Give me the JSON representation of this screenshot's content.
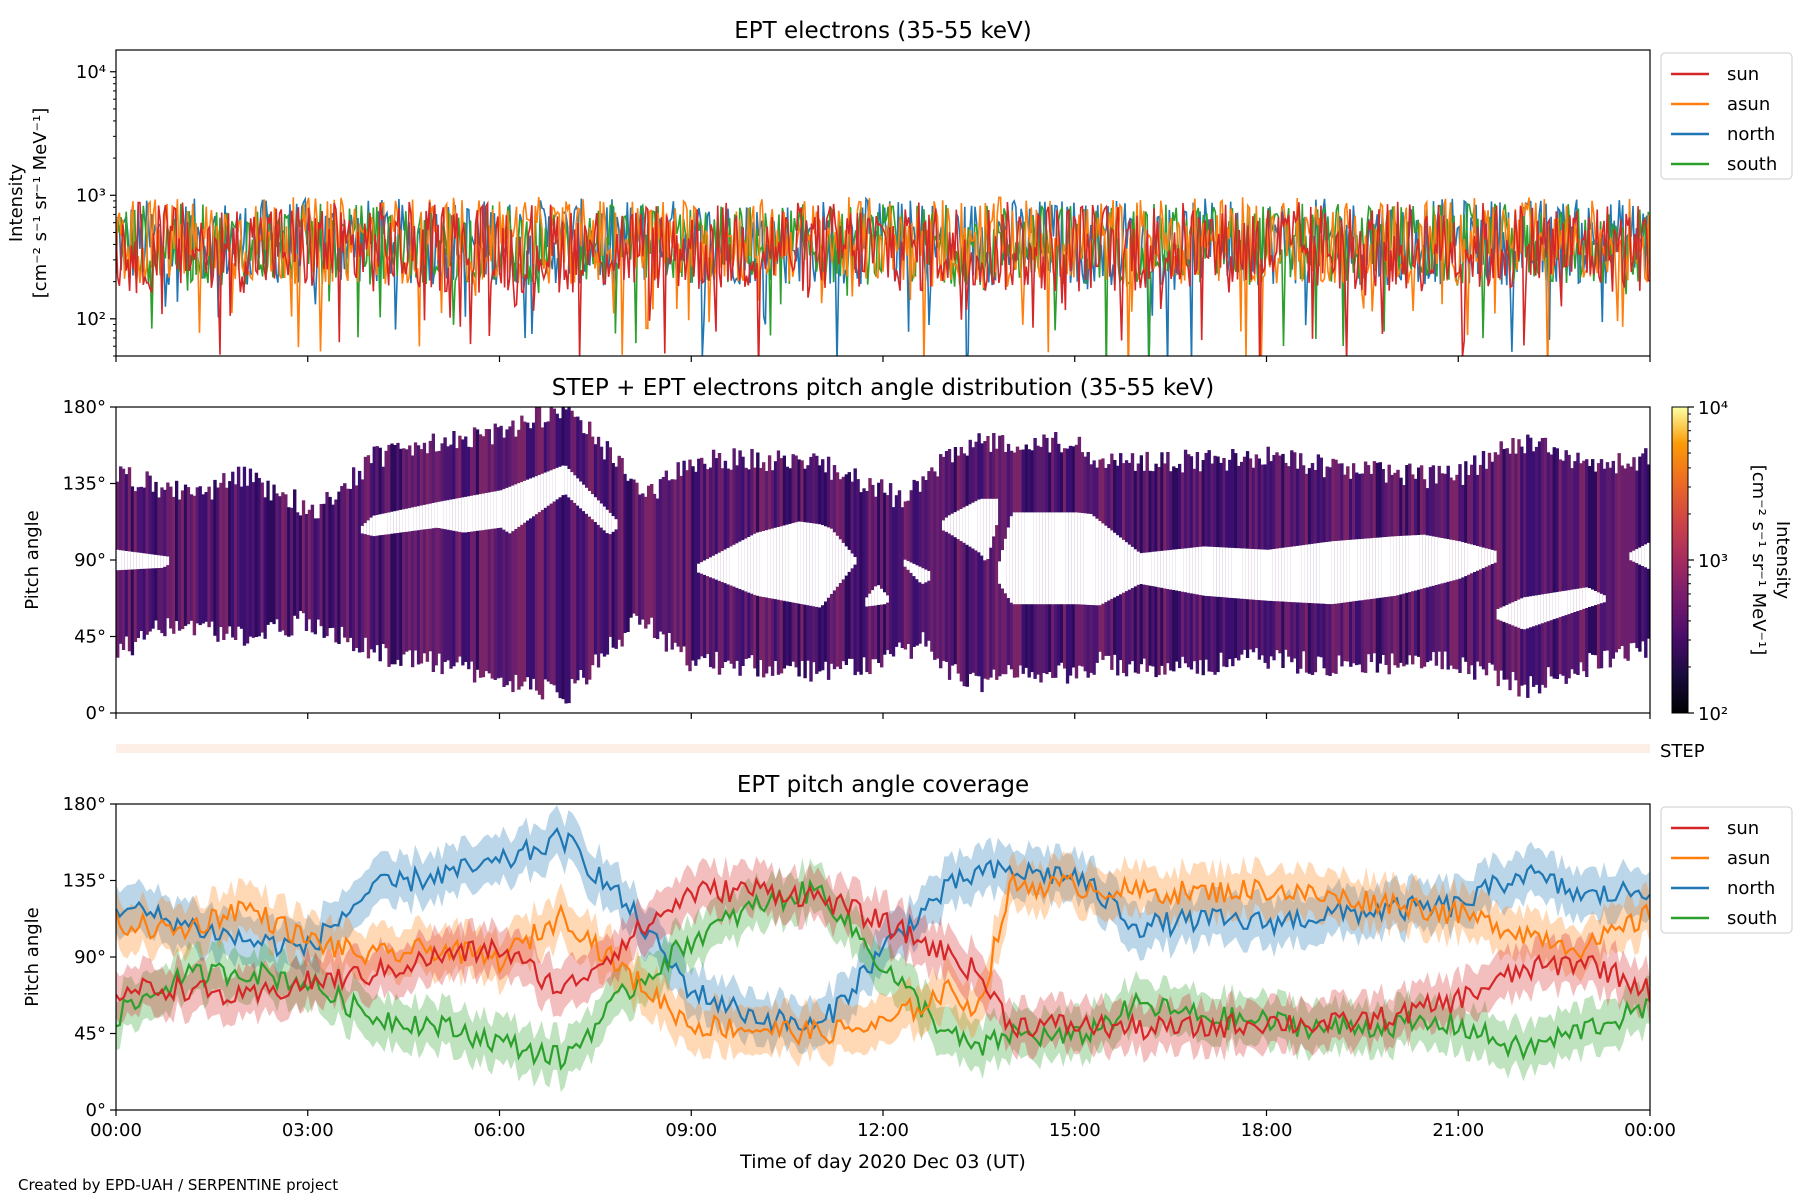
{
  "credit": "Created by EPD-UAH / SERPENTINE project",
  "colors": {
    "sun": "#d62728",
    "asun": "#ff7f0e",
    "north": "#1f77b4",
    "south": "#2ca02c"
  },
  "chart_data": [
    {
      "id": "intensity",
      "type": "line",
      "title": "EPT electrons (35-55 keV)",
      "ylabel_lines": [
        "Intensity",
        "[cm⁻² s⁻¹ sr⁻¹ MeV⁻¹]"
      ],
      "yscale": "log",
      "ylim": [
        50,
        15000
      ],
      "yticks": [
        {
          "value": 100,
          "label": "10²"
        },
        {
          "value": 1000,
          "label": "10³"
        },
        {
          "value": 10000,
          "label": "10⁴"
        }
      ],
      "xlim": [
        0,
        24
      ],
      "legend_location": "upper right outside",
      "series": [
        {
          "name": "north",
          "typical": 420,
          "spread": 0.16
        },
        {
          "name": "south",
          "typical": 400,
          "spread": 0.15
        },
        {
          "name": "asun",
          "typical": 430,
          "spread": 0.16
        },
        {
          "name": "sun",
          "typical": 380,
          "spread": 0.17
        }
      ]
    },
    {
      "id": "pad",
      "type": "heatmap",
      "title": "STEP + EPT electrons pitch angle distribution (35-55 keV)",
      "ylabel": "Pitch angle",
      "ylim": [
        0,
        180
      ],
      "yticks": [
        {
          "value": 0,
          "label": "0°"
        },
        {
          "value": 45,
          "label": "45°"
        },
        {
          "value": 90,
          "label": "90°"
        },
        {
          "value": 135,
          "label": "135°"
        },
        {
          "value": 180,
          "label": "180°"
        }
      ],
      "xlim": [
        0,
        24
      ],
      "colorbar": {
        "label_lines": [
          "Intensity",
          "[cm⁻² s⁻¹ sr⁻¹ MeV⁻¹]"
        ],
        "scale": "log",
        "range": [
          100,
          10000
        ],
        "ticks": [
          {
            "value": 100,
            "label": "10²"
          },
          {
            "value": 1000,
            "label": "10³"
          },
          {
            "value": 10000,
            "label": "10⁴"
          }
        ]
      }
    },
    {
      "id": "step",
      "type": "strip",
      "label": "STEP"
    },
    {
      "id": "coverage",
      "type": "line",
      "title": "EPT pitch angle coverage",
      "ylabel": "Pitch angle",
      "ylim": [
        0,
        180
      ],
      "yticks": [
        {
          "value": 0,
          "label": "0°"
        },
        {
          "value": 45,
          "label": "45°"
        },
        {
          "value": 90,
          "label": "90°"
        },
        {
          "value": 135,
          "label": "135°"
        },
        {
          "value": 180,
          "label": "180°"
        }
      ],
      "xlabel": "Time of day 2020 Dec 03 (UT)",
      "xlim": [
        0,
        24
      ],
      "xticks": [
        {
          "value": 0,
          "label": "00:00"
        },
        {
          "value": 3,
          "label": "03:00"
        },
        {
          "value": 6,
          "label": "06:00"
        },
        {
          "value": 9,
          "label": "09:00"
        },
        {
          "value": 12,
          "label": "12:00"
        },
        {
          "value": 15,
          "label": "15:00"
        },
        {
          "value": 18,
          "label": "18:00"
        },
        {
          "value": 21,
          "label": "21:00"
        },
        {
          "value": 24,
          "label": "00:00"
        }
      ],
      "band_halfwidth_deg": 14,
      "legend_location": "upper right outside",
      "series": [
        {
          "name": "sun",
          "x": [
            0,
            1,
            2,
            3,
            4,
            5,
            6,
            7,
            8,
            9,
            10,
            11,
            12,
            13,
            13.5,
            14,
            15,
            16,
            17,
            18,
            19,
            20,
            21,
            22,
            23,
            24
          ],
          "y": [
            70,
            72,
            65,
            75,
            80,
            90,
            95,
            70,
            100,
            128,
            130,
            125,
            110,
            92,
            80,
            50,
            50,
            48,
            48,
            52,
            50,
            55,
            65,
            82,
            88,
            70
          ]
        },
        {
          "name": "asun",
          "x": [
            0,
            1,
            2,
            3,
            4,
            5,
            6,
            7,
            8,
            9,
            10,
            11,
            12,
            13,
            13.5,
            14,
            15,
            16,
            17,
            18,
            19,
            20,
            21,
            22,
            23,
            24
          ],
          "y": [
            110,
            105,
            120,
            100,
            90,
            95,
            88,
            115,
            80,
            50,
            48,
            45,
            50,
            70,
            60,
            132,
            132,
            128,
            128,
            130,
            125,
            122,
            115,
            105,
            95,
            115
          ]
        },
        {
          "name": "north",
          "x": [
            0,
            1,
            2,
            3,
            4,
            5,
            6,
            7,
            8,
            9,
            10,
            11,
            12,
            13,
            13.5,
            14,
            15,
            16,
            17,
            18,
            19,
            20,
            21,
            22,
            23,
            24
          ],
          "y": [
            120,
            110,
            100,
            95,
            130,
            138,
            145,
            160,
            120,
            70,
            55,
            48,
            95,
            130,
            140,
            140,
            138,
            108,
            112,
            110,
            115,
            118,
            120,
            140,
            125,
            130
          ]
        },
        {
          "name": "south",
          "x": [
            0,
            1,
            2,
            3,
            4,
            5,
            6,
            7,
            8,
            9,
            10,
            11,
            12,
            13,
            13.5,
            14,
            15,
            16,
            17,
            18,
            19,
            20,
            21,
            22,
            23,
            24
          ],
          "y": [
            55,
            78,
            82,
            75,
            55,
            50,
            40,
            30,
            70,
            100,
            120,
            130,
            85,
            45,
            35,
            45,
            42,
            62,
            55,
            52,
            48,
            50,
            50,
            35,
            48,
            60
          ]
        }
      ]
    }
  ]
}
